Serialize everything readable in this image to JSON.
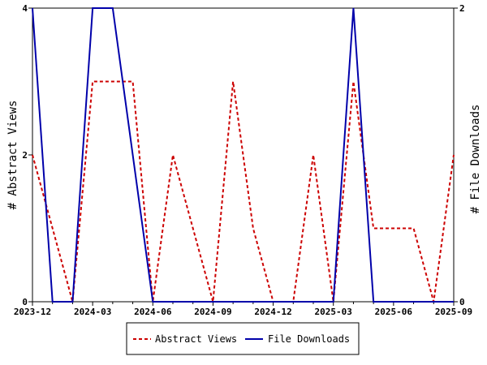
{
  "chart_data": {
    "type": "line",
    "x": [
      "2023-12",
      "2024-01",
      "2024-02",
      "2024-03",
      "2024-04",
      "2024-05",
      "2024-06",
      "2024-07",
      "2024-08",
      "2024-09",
      "2024-10",
      "2024-11",
      "2024-12",
      "2025-01",
      "2025-02",
      "2025-03",
      "2025-04",
      "2025-05",
      "2025-06",
      "2025-07",
      "2025-08",
      "2025-09"
    ],
    "x_tick_labels": [
      "2023-12",
      "2024-03",
      "2024-06",
      "2024-09",
      "2024-12",
      "2025-03",
      "2025-06",
      "2025-09"
    ],
    "ylabel_left": "# Abstract Views",
    "ylabel_right": "# File Downloads",
    "ylim_left": [
      0,
      4
    ],
    "ylim_right": [
      0,
      2
    ],
    "y_ticks_left": [
      0,
      2,
      4
    ],
    "y_ticks_right": [
      0,
      2
    ],
    "grid": false,
    "legend_position": "bottom-center",
    "series": [
      {
        "name": "Abstract Views",
        "axis": "left",
        "color": "#cc0000",
        "style": "dashed",
        "values": [
          2,
          1,
          0,
          3,
          3,
          3,
          0,
          2,
          1,
          0,
          3,
          1,
          0,
          0,
          2,
          0,
          3,
          1,
          1,
          1,
          0,
          2
        ]
      },
      {
        "name": "File Downloads",
        "axis": "right",
        "color": "#0000aa",
        "style": "solid",
        "values": [
          2,
          0,
          0,
          2,
          2,
          1,
          0,
          0,
          0,
          0,
          0,
          0,
          0,
          0,
          0,
          0,
          2,
          0,
          0,
          0,
          0,
          0
        ]
      }
    ]
  }
}
